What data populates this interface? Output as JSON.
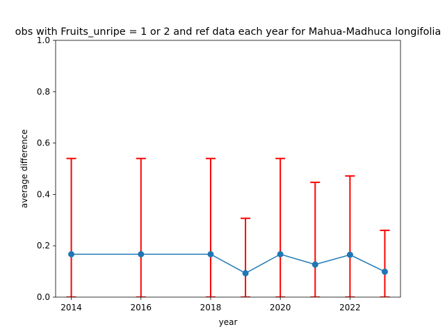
{
  "chart_data": {
    "type": "line",
    "title": "obs with Fruits_unripe = 1 or 2 and ref data each year for Mahua-Madhuca longifolia",
    "xlabel": "year",
    "ylabel": "average difference",
    "xlim": [
      2013.55,
      2023.45
    ],
    "ylim": [
      0.0,
      1.0
    ],
    "x_ticks": [
      2014,
      2016,
      2018,
      2020,
      2022
    ],
    "y_ticks": [
      0.0,
      0.2,
      0.4,
      0.6,
      0.8,
      1.0
    ],
    "grid": false,
    "series": [
      {
        "color": "#1f77b4",
        "points": [
          {
            "x": 2014,
            "y": 0.167,
            "err_low": 0.167,
            "err_high": 0.373
          },
          {
            "x": 2016,
            "y": 0.167,
            "err_low": 0.167,
            "err_high": 0.373
          },
          {
            "x": 2018,
            "y": 0.167,
            "err_low": 0.167,
            "err_high": 0.373
          },
          {
            "x": 2019,
            "y": 0.093,
            "err_low": 0.093,
            "err_high": 0.214
          },
          {
            "x": 2020,
            "y": 0.167,
            "err_low": 0.167,
            "err_high": 0.373
          },
          {
            "x": 2021,
            "y": 0.127,
            "err_low": 0.127,
            "err_high": 0.32
          },
          {
            "x": 2022,
            "y": 0.165,
            "err_low": 0.165,
            "err_high": 0.307
          },
          {
            "x": 2023,
            "y": 0.099,
            "err_low": 0.099,
            "err_high": 0.161
          }
        ]
      }
    ],
    "error_bar_color": "#ff0000"
  }
}
